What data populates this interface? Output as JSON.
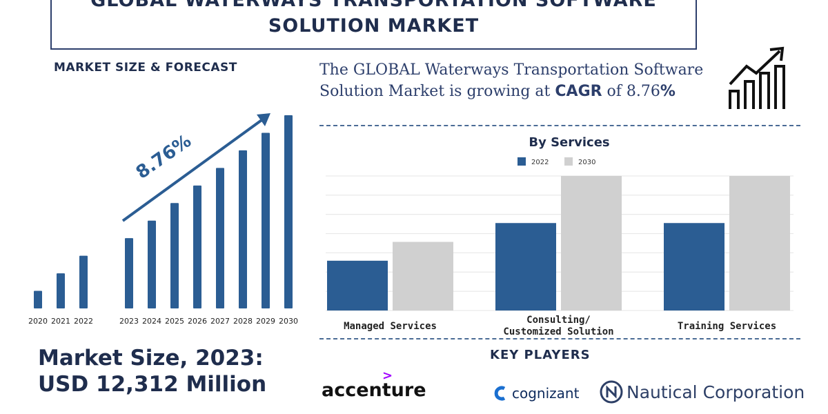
{
  "header": {
    "title_line1": "GLOBAL WATERWAYS TRANSPORTATION SOFTWARE",
    "title_line2": "SOLUTION MARKET",
    "market_section_label": "MARKET SIZE & FORECAST",
    "headline_part1": "The GLOBAL Waterways Transportation Software Solution Market is growing at ",
    "headline_cagr_word": "CAGR",
    "headline_of": " of 8.76",
    "headline_pct": "%",
    "icon": "trend-bar-arrow-icon"
  },
  "chart_data": [
    {
      "type": "bar",
      "title": "MARKET SIZE & FORECAST",
      "categories": [
        "2020",
        "2021",
        "2022",
        "2023",
        "2024",
        "2025",
        "2026",
        "2027",
        "2028",
        "2029",
        "2030"
      ],
      "values": [
        1.0,
        2.0,
        3.0,
        4.0,
        5.0,
        6.0,
        7.0,
        8.0,
        9.0,
        10.0,
        11.0
      ],
      "annotation": "8.76%",
      "color": "#2b5d93"
    },
    {
      "type": "bar",
      "title": "By Services",
      "categories": [
        "Managed Services",
        "Consulting/ Customized Solution",
        "Training Services"
      ],
      "series": [
        {
          "name": "2022",
          "values": [
            37,
            65,
            65
          ],
          "color": "#2b5d93"
        },
        {
          "name": "2030",
          "values": [
            51,
            100,
            100
          ],
          "color": "#d0d0d0"
        }
      ],
      "ylim": [
        0,
        100
      ]
    }
  ],
  "market_size": {
    "line1": "Market Size, 2023:",
    "line2": "USD 12,312 Million"
  },
  "key_players": {
    "heading": "KEY PLAYERS",
    "accenture": "accenture",
    "accenture_mark": ">",
    "cognizant": "cognizant",
    "nautical": "Nautical Corporation"
  }
}
